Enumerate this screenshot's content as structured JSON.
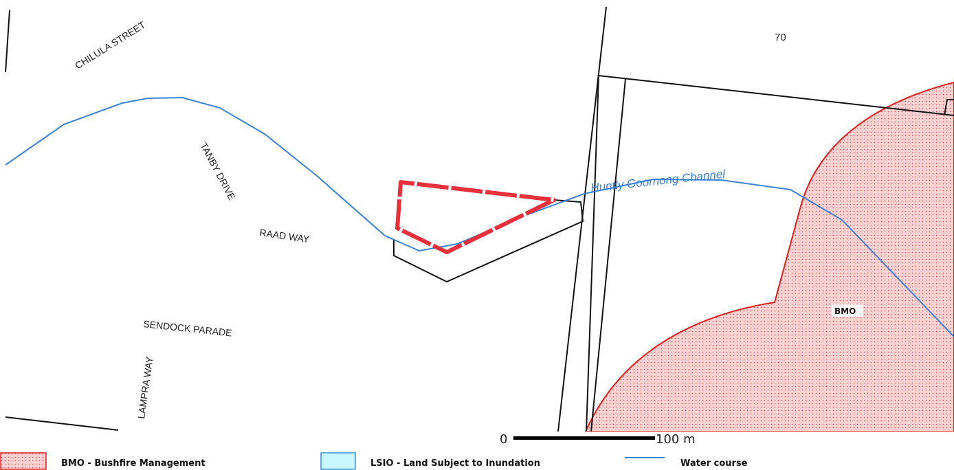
{
  "map": {
    "roads": {
      "chilula_street": "CHILULA STREET",
      "tanby_drive": "TANBY DRIVE",
      "raad_way": "RAAD WAY",
      "sendock_parade": "SENDOCK PARADE",
      "lampra_way": "LAMPRA WAY"
    },
    "parcel_number": "70",
    "watercourse_name": "Huntly Goornong Channel",
    "overlay_label": "BMO",
    "scale_bar": {
      "start": "0",
      "end": "100 m"
    }
  },
  "legend": {
    "items": [
      {
        "label": "BMO - Bushfire Management",
        "symbol": "dotted-fill"
      },
      {
        "label": "LSIO - Land Subject to Inundation",
        "symbol": "cyan-fill"
      },
      {
        "label": "Water course",
        "symbol": "line"
      }
    ]
  },
  "colors": {
    "bmo_fill": "#fbd0d0",
    "bmo_outline": "#e01e1e",
    "bmo_dots": "#e04040",
    "lsio_fill": "#c8f8ff",
    "lsio_outline": "#3b8fd0",
    "water": "#3b82d6",
    "subject_site": "#e8303a",
    "parcel_lines": "#111111"
  }
}
